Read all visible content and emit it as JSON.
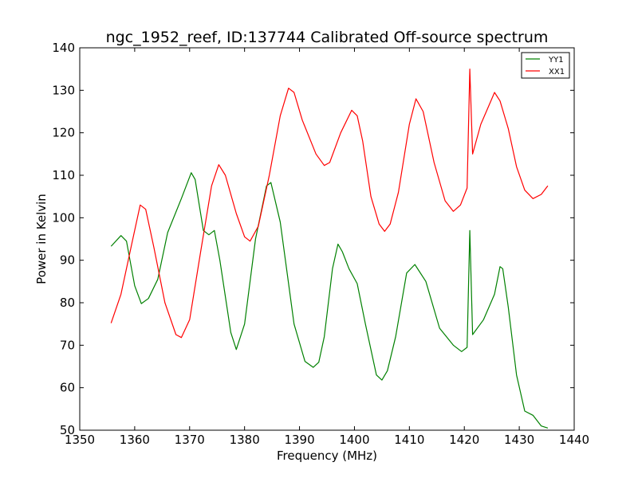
{
  "chart_data": {
    "type": "line",
    "title": "ngc_1952_reef, ID:137744 Calibrated Off-source spectrum",
    "xlabel": "Frequency (MHz)",
    "ylabel": "Power in Kelvin",
    "xlim": [
      1350,
      1440
    ],
    "ylim": [
      50,
      140
    ],
    "x_ticks": [
      "1350",
      "1360",
      "1370",
      "1380",
      "1390",
      "1400",
      "1410",
      "1420",
      "1430",
      "1440"
    ],
    "y_ticks": [
      "50",
      "60",
      "70",
      "80",
      "90",
      "100",
      "110",
      "120",
      "130",
      "140"
    ],
    "grid": false,
    "legend": "top-right",
    "series": [
      {
        "name": "YY1",
        "color": "#008000",
        "points": [
          [
            1355.7,
            93.3
          ],
          [
            1357.5,
            95.8
          ],
          [
            1358.5,
            94.5
          ],
          [
            1360.0,
            84.0
          ],
          [
            1361.2,
            79.8
          ],
          [
            1362.5,
            81.0
          ],
          [
            1364.2,
            85.5
          ],
          [
            1366.0,
            96.5
          ],
          [
            1368.5,
            104.5
          ],
          [
            1370.3,
            110.6
          ],
          [
            1371.0,
            109.0
          ],
          [
            1372.5,
            97.0
          ],
          [
            1373.5,
            96.0
          ],
          [
            1374.5,
            97.0
          ],
          [
            1375.5,
            90.0
          ],
          [
            1377.5,
            73.0
          ],
          [
            1378.5,
            69.0
          ],
          [
            1380.0,
            75.0
          ],
          [
            1382.0,
            95.0
          ],
          [
            1384.0,
            107.5
          ],
          [
            1384.8,
            108.3
          ],
          [
            1386.5,
            99.0
          ],
          [
            1389.0,
            75.0
          ],
          [
            1391.0,
            66.2
          ],
          [
            1392.5,
            64.8
          ],
          [
            1393.5,
            66.0
          ],
          [
            1394.5,
            72.0
          ],
          [
            1396.0,
            88.0
          ],
          [
            1397.0,
            93.8
          ],
          [
            1397.8,
            92.0
          ],
          [
            1399.0,
            88.0
          ],
          [
            1400.5,
            84.5
          ],
          [
            1402.0,
            75.0
          ],
          [
            1404.0,
            63.0
          ],
          [
            1405.0,
            61.8
          ],
          [
            1406.0,
            64.0
          ],
          [
            1407.5,
            72.0
          ],
          [
            1409.5,
            87.0
          ],
          [
            1411.0,
            89.0
          ],
          [
            1413.0,
            85.0
          ],
          [
            1415.5,
            74.0
          ],
          [
            1418.0,
            70.0
          ],
          [
            1419.5,
            68.5
          ],
          [
            1420.5,
            69.5
          ],
          [
            1421.0,
            97.0
          ],
          [
            1421.5,
            72.5
          ],
          [
            1423.5,
            76.0
          ],
          [
            1425.5,
            82.0
          ],
          [
            1426.5,
            88.5
          ],
          [
            1427.0,
            88.0
          ],
          [
            1428.0,
            79.0
          ],
          [
            1429.5,
            63.0
          ],
          [
            1431.0,
            54.5
          ],
          [
            1432.5,
            53.5
          ],
          [
            1434.0,
            51.0
          ],
          [
            1435.2,
            50.5
          ]
        ]
      },
      {
        "name": "XX1",
        "color": "#ff0000",
        "points": [
          [
            1355.7,
            75.2
          ],
          [
            1357.5,
            82.0
          ],
          [
            1359.5,
            94.0
          ],
          [
            1361.0,
            103.0
          ],
          [
            1362.0,
            102.0
          ],
          [
            1363.5,
            93.0
          ],
          [
            1365.5,
            80.0
          ],
          [
            1367.5,
            72.5
          ],
          [
            1368.5,
            71.8
          ],
          [
            1370.0,
            76.0
          ],
          [
            1372.0,
            92.0
          ],
          [
            1374.0,
            107.5
          ],
          [
            1375.3,
            112.5
          ],
          [
            1376.5,
            110.0
          ],
          [
            1378.5,
            101.0
          ],
          [
            1380.0,
            95.5
          ],
          [
            1381.0,
            94.5
          ],
          [
            1382.5,
            98.0
          ],
          [
            1384.5,
            110.0
          ],
          [
            1386.5,
            124.0
          ],
          [
            1388.0,
            130.5
          ],
          [
            1389.0,
            129.5
          ],
          [
            1390.5,
            123.0
          ],
          [
            1393.0,
            115.0
          ],
          [
            1394.5,
            112.3
          ],
          [
            1395.5,
            113.0
          ],
          [
            1397.5,
            120.0
          ],
          [
            1399.5,
            125.3
          ],
          [
            1400.5,
            124.0
          ],
          [
            1401.5,
            118.0
          ],
          [
            1403.0,
            105.0
          ],
          [
            1404.5,
            98.5
          ],
          [
            1405.5,
            96.8
          ],
          [
            1406.5,
            98.5
          ],
          [
            1408.0,
            106.0
          ],
          [
            1410.0,
            122.0
          ],
          [
            1411.2,
            128.0
          ],
          [
            1412.5,
            125.0
          ],
          [
            1414.5,
            113.0
          ],
          [
            1416.5,
            104.0
          ],
          [
            1418.0,
            101.5
          ],
          [
            1419.3,
            103.0
          ],
          [
            1420.5,
            107.0
          ],
          [
            1421.0,
            135.0
          ],
          [
            1421.5,
            115.0
          ],
          [
            1423.0,
            122.0
          ],
          [
            1425.0,
            128.0
          ],
          [
            1425.5,
            129.5
          ],
          [
            1426.5,
            127.5
          ],
          [
            1428.0,
            121.0
          ],
          [
            1429.5,
            112.0
          ],
          [
            1431.0,
            106.5
          ],
          [
            1432.5,
            104.5
          ],
          [
            1434.0,
            105.5
          ],
          [
            1435.2,
            107.5
          ]
        ]
      }
    ]
  }
}
